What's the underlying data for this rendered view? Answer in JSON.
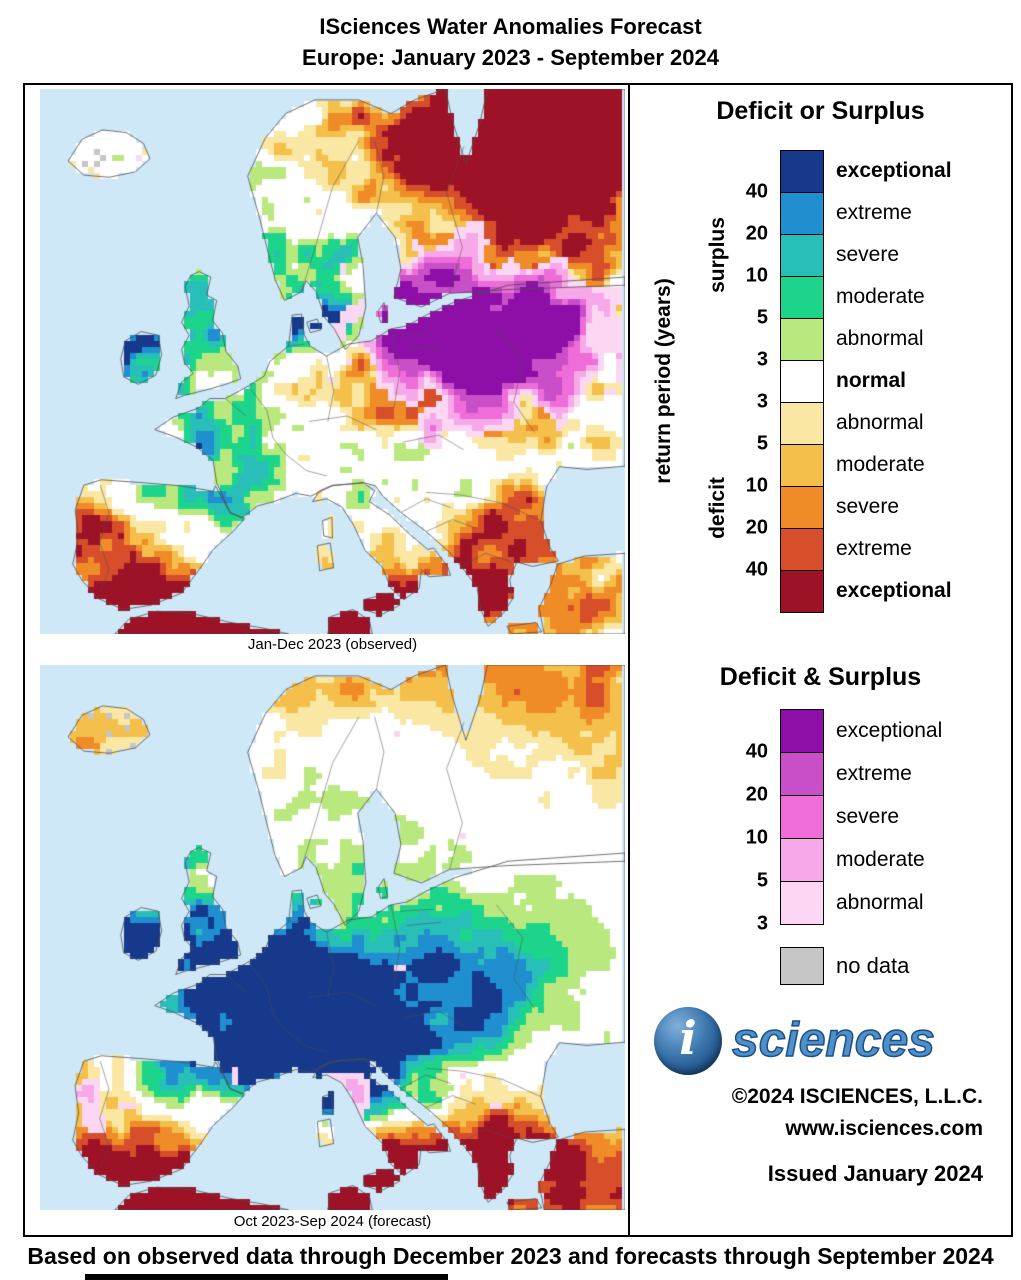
{
  "title": {
    "line1": "ISciences Water Anomalies Forecast",
    "line2": "Europe: January 2023 - September 2024"
  },
  "maps": [
    {
      "caption": "Jan-Dec 2023 (observed)"
    },
    {
      "caption": "Oct 2023-Sep 2024 (forecast)"
    }
  ],
  "legend1": {
    "title": "Deficit or Surplus",
    "axis_label": "return period (years)",
    "surplus_label": "surplus",
    "deficit_label": "deficit",
    "surplus_ticks": [
      "40",
      "20",
      "10",
      "5",
      "3"
    ],
    "deficit_ticks": [
      "3",
      "5",
      "10",
      "20",
      "40"
    ],
    "entries": [
      {
        "label": "exceptional",
        "color": "#16398c",
        "bold": true
      },
      {
        "label": "extreme",
        "color": "#1f8fd0",
        "bold": false
      },
      {
        "label": "severe",
        "color": "#27bfb8",
        "bold": false
      },
      {
        "label": "moderate",
        "color": "#1dd58a",
        "bold": false
      },
      {
        "label": "abnormal",
        "color": "#b9e97e",
        "bold": false
      },
      {
        "label": "normal",
        "color": "#ffffff",
        "bold": true
      },
      {
        "label": "abnormal",
        "color": "#f9e7a3",
        "bold": false
      },
      {
        "label": "moderate",
        "color": "#f4bf4b",
        "bold": false
      },
      {
        "label": "severe",
        "color": "#f08c28",
        "bold": false
      },
      {
        "label": "extreme",
        "color": "#d64f2a",
        "bold": false
      },
      {
        "label": "exceptional",
        "color": "#9e1227",
        "bold": true
      }
    ]
  },
  "legend2": {
    "title": "Deficit & Surplus",
    "ticks": [
      "40",
      "20",
      "10",
      "5",
      "3"
    ],
    "entries": [
      {
        "label": "exceptional",
        "color": "#8e0fa8",
        "bold": false
      },
      {
        "label": "extreme",
        "color": "#c94fc9",
        "bold": false
      },
      {
        "label": "severe",
        "color": "#ee6dd8",
        "bold": false
      },
      {
        "label": "moderate",
        "color": "#f7a8e8",
        "bold": false
      },
      {
        "label": "abnormal",
        "color": "#fbd7f3",
        "bold": false
      }
    ]
  },
  "no_data": {
    "label": "no data",
    "color": "#c6c6c6"
  },
  "branding": {
    "logo_i": "i",
    "logo_text": "sciences",
    "copyright": "©2024 ISCIENCES, L.L.C.",
    "website": "www.isciences.com",
    "issued": "Issued January 2024"
  },
  "footer": "Based on observed data through December 2023 and forecasts through September 2024",
  "map_style": {
    "ocean_color": "#cfe8f8",
    "land_color": "#ffffff",
    "coast_color": "#4d4d4d"
  }
}
